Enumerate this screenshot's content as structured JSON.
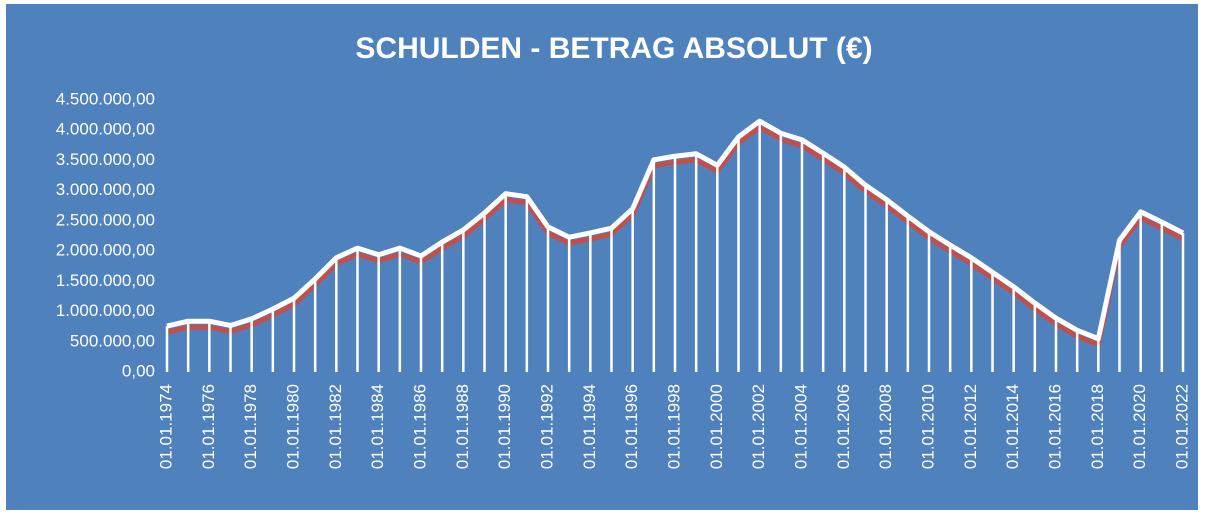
{
  "chart_data": {
    "type": "line",
    "title": "SCHULDEN - BETRAG ABSOLUT (€)",
    "categories": [
      "01.01.1974",
      null,
      "01.01.1976",
      null,
      "01.01.1978",
      null,
      "01.01.1980",
      null,
      "01.01.1982",
      null,
      "01.01.1984",
      null,
      "01.01.1986",
      null,
      "01.01.1988",
      null,
      "01.01.1990",
      null,
      "01.01.1992",
      null,
      "01.01.1994",
      null,
      "01.01.1996",
      null,
      "01.01.1998",
      null,
      "01.01.2000",
      null,
      "01.01.2002",
      null,
      "01.01.2004",
      null,
      "01.01.2006",
      null,
      "01.01.2008",
      null,
      "01.01.2010",
      null,
      "01.01.2012",
      null,
      "01.01.2014",
      null,
      "01.01.2016",
      null,
      "01.01.2018",
      null,
      "01.01.2020",
      null,
      "01.01.2022"
    ],
    "values": [
      760000,
      840000,
      840000,
      770000,
      880000,
      1040000,
      1220000,
      1540000,
      1890000,
      2050000,
      1940000,
      2050000,
      1920000,
      2150000,
      2350000,
      2630000,
      2950000,
      2900000,
      2400000,
      2230000,
      2300000,
      2380000,
      2700000,
      3510000,
      3570000,
      3610000,
      3420000,
      3890000,
      4150000,
      3950000,
      3840000,
      3620000,
      3390000,
      3090000,
      2850000,
      2580000,
      2320000,
      2100000,
      1890000,
      1650000,
      1410000,
      1140000,
      890000,
      690000,
      550000,
      2180000,
      2650000,
      2480000,
      2300000
    ],
    "color": "#ffffff",
    "shadow_color": "#c0504d",
    "ylim": [
      0,
      4500000
    ],
    "yticks": [
      {
        "value": 0,
        "label": "0,00"
      },
      {
        "value": 500000,
        "label": "500.000,00"
      },
      {
        "value": 1000000,
        "label": "1.000.000,00"
      },
      {
        "value": 1500000,
        "label": "1.500.000,00"
      },
      {
        "value": 2000000,
        "label": "2.000.000,00"
      },
      {
        "value": 2500000,
        "label": "2.500.000,00"
      },
      {
        "value": 3000000,
        "label": "3.000.000,00"
      },
      {
        "value": 3500000,
        "label": "3.500.000,00"
      },
      {
        "value": 4000000,
        "label": "4.000.000,00"
      },
      {
        "value": 4500000,
        "label": "4.500.000,00"
      }
    ],
    "drop_lines": true
  }
}
